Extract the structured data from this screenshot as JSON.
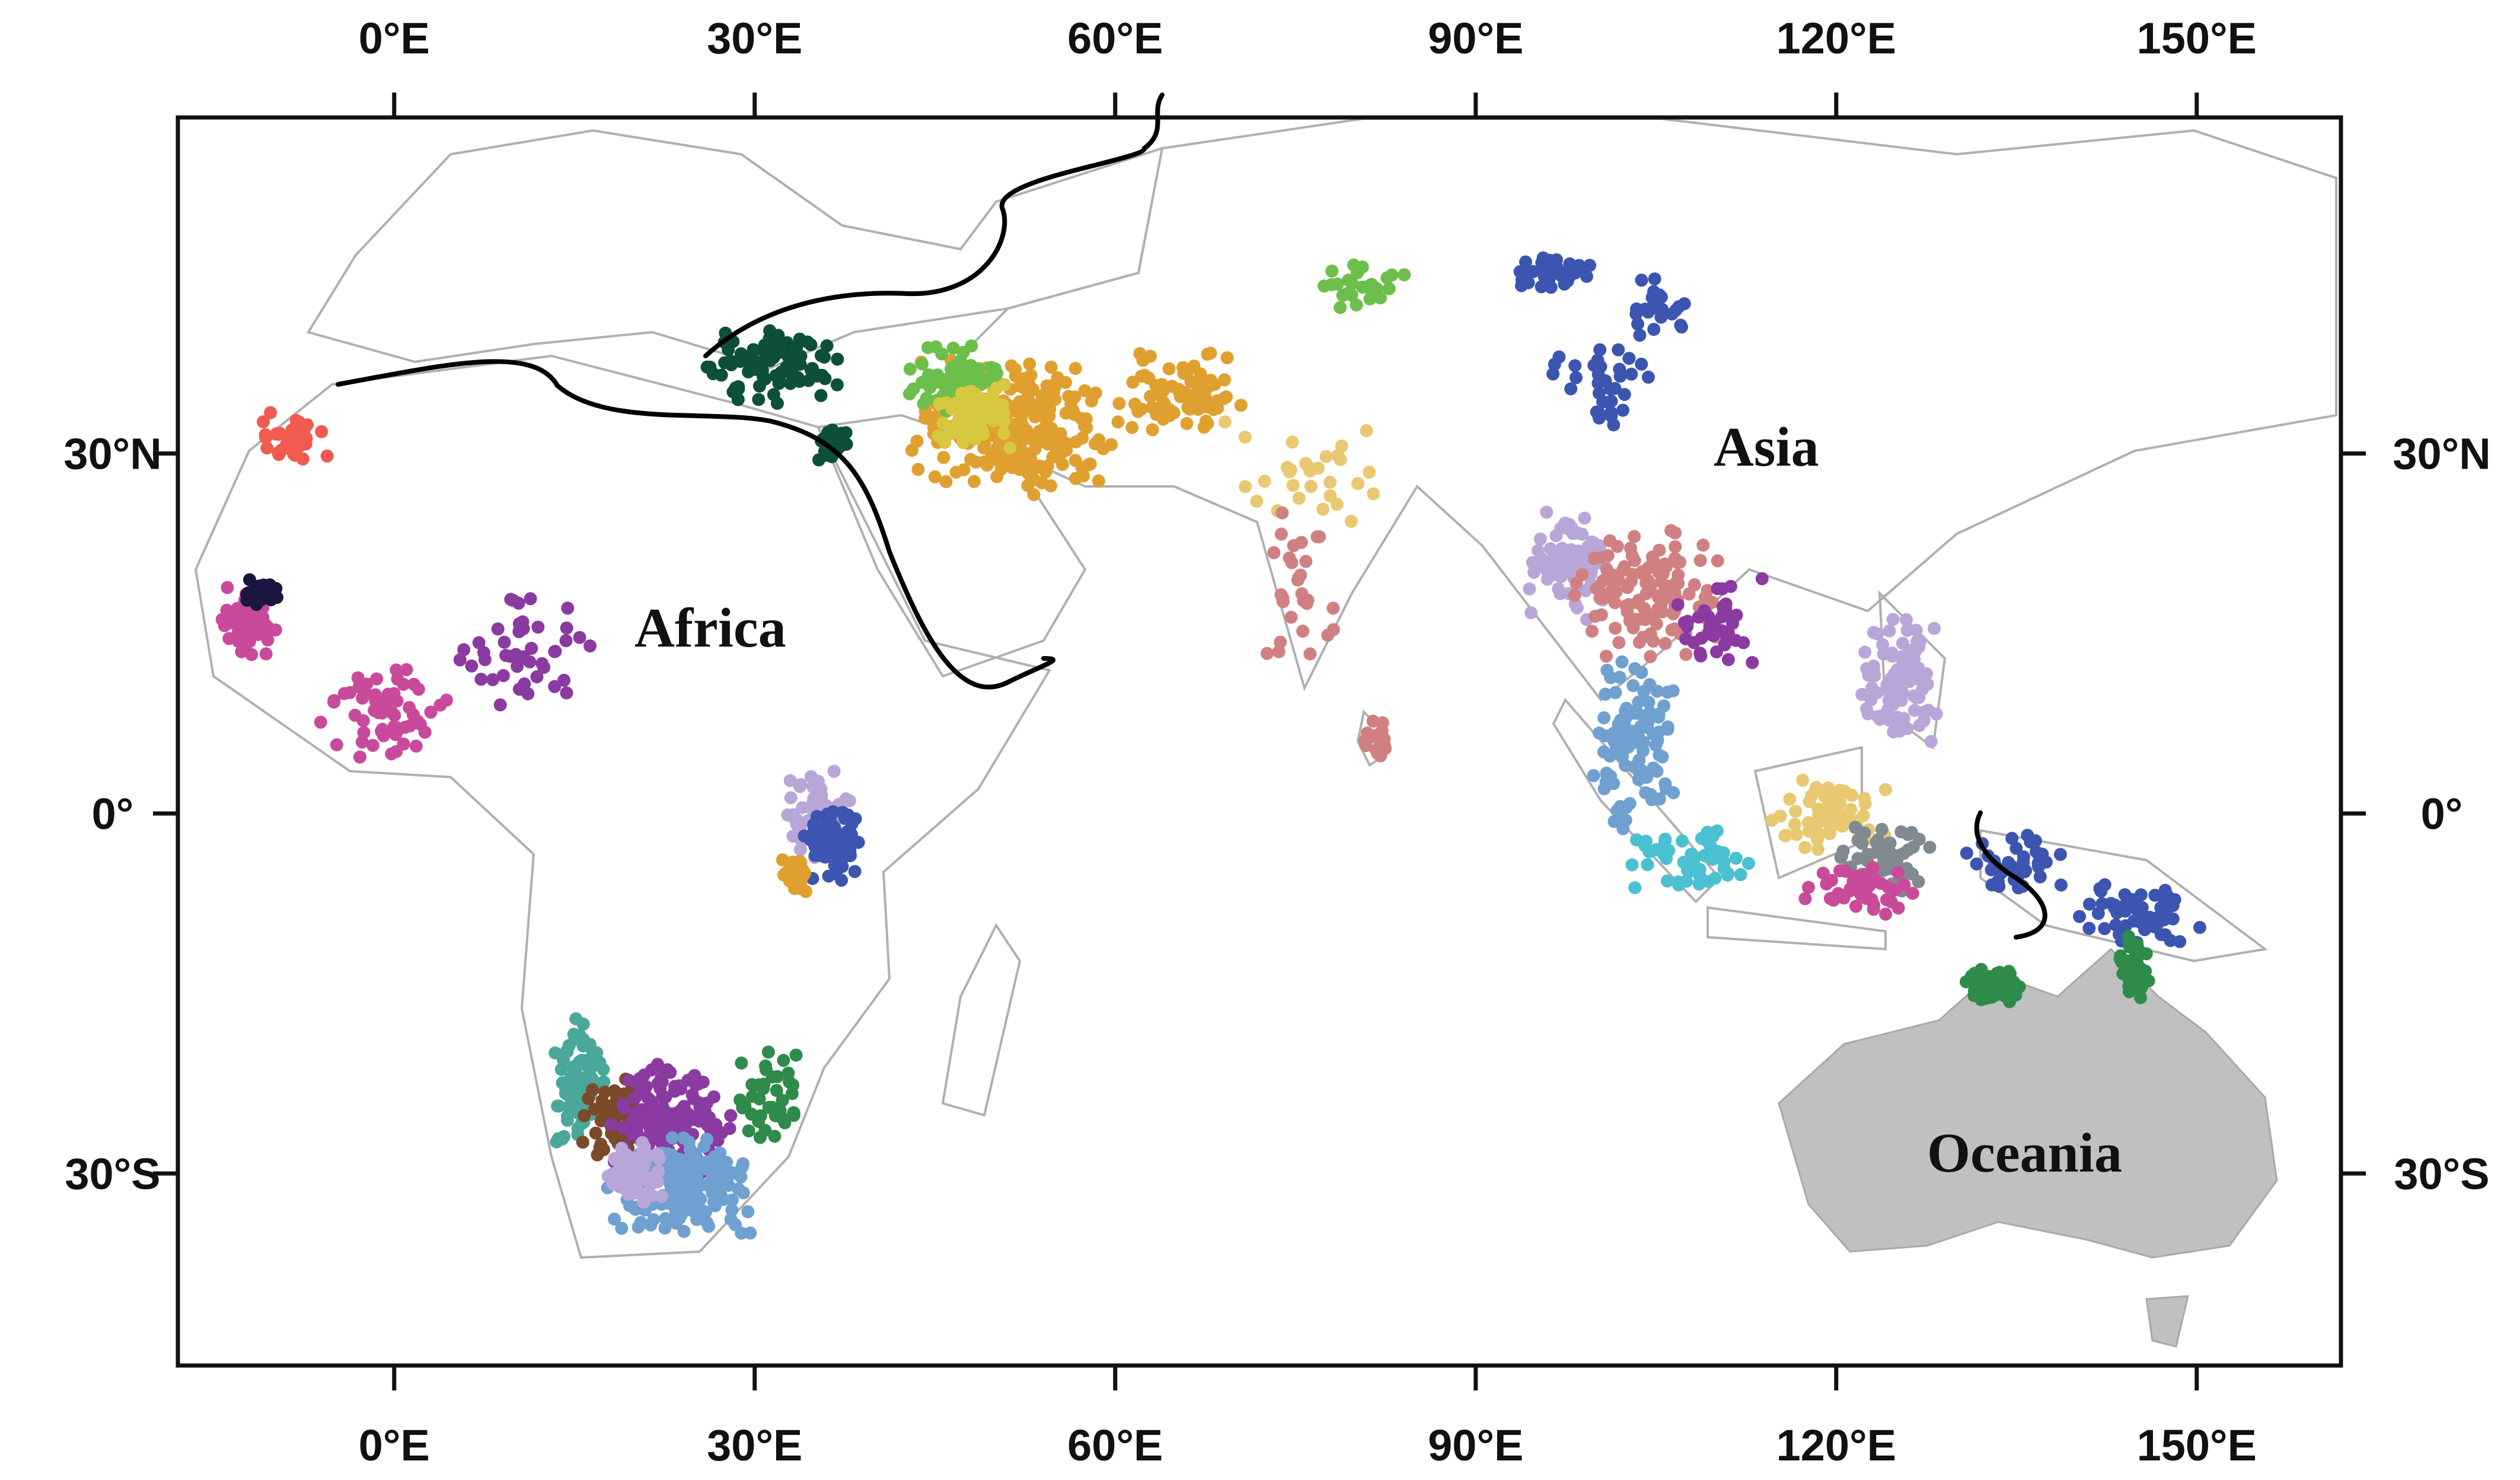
{
  "map": {
    "region_labels": [
      "Africa",
      "Asia",
      "Oceania"
    ],
    "lon_ticks": [
      {
        "lon": 0,
        "label": "0°E"
      },
      {
        "lon": 30,
        "label": "30°E"
      },
      {
        "lon": 60,
        "label": "60°E"
      },
      {
        "lon": 90,
        "label": "90°E"
      },
      {
        "lon": 120,
        "label": "120°E"
      },
      {
        "lon": 150,
        "label": "150°E"
      }
    ],
    "lat_ticks": [
      {
        "lat": 30,
        "label": "30°N"
      },
      {
        "lat": 0,
        "label": "0°"
      },
      {
        "lat": -30,
        "label": "30°S"
      }
    ],
    "extent": {
      "lon_min": -18,
      "lon_max": 162,
      "lat_min": -46,
      "lat_max": 58
    },
    "colors": {
      "frame": "#111111",
      "boundary": "#b0b0b0",
      "divider": "#000000",
      "oceania_fill": "#c0c0c0",
      "clusters": [
        "#f05a4f",
        "#c94a9a",
        "#1b1640",
        "#0e4f3a",
        "#e0a030",
        "#d8c840",
        "#6cbf4a",
        "#3c55b0",
        "#4aa89a",
        "#7a4a2a",
        "#6fa0d0",
        "#8a3aa0",
        "#b9a6d8",
        "#d08080",
        "#2e8b4a",
        "#e8c870",
        "#4ac0d0",
        "#808a90"
      ]
    }
  }
}
